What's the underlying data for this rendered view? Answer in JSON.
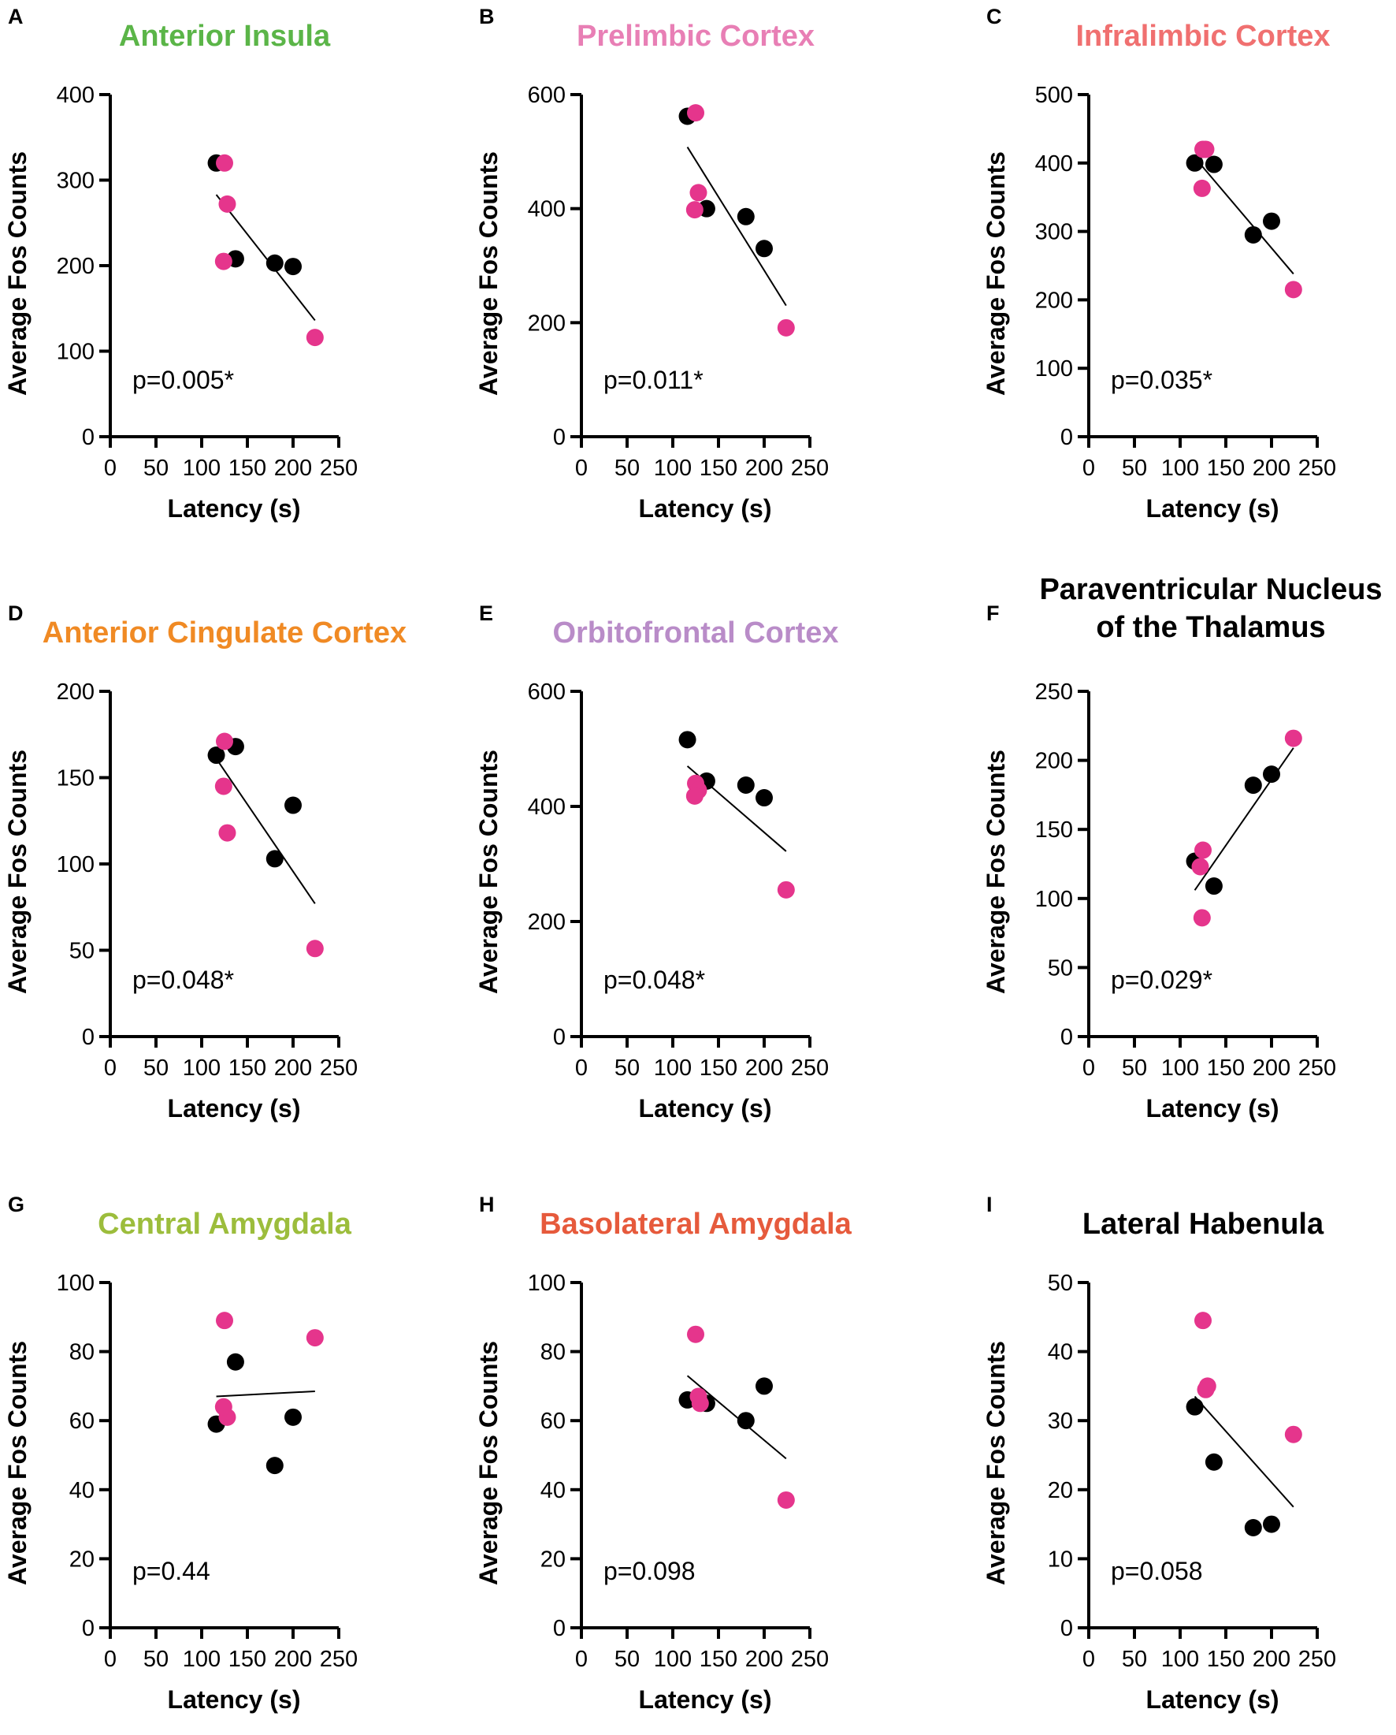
{
  "colors": {
    "control_point": "#000000",
    "treated_point": "#e5358c",
    "fit_line": "#000000"
  },
  "chart_data": [
    {
      "panel": "A",
      "type": "scatter",
      "title": "Anterior Insula",
      "title_color": "#5bb548",
      "xlabel": "Latency (s)",
      "ylabel": "Average Fos Counts",
      "xlim": [
        0,
        250
      ],
      "ylim": [
        0,
        400
      ],
      "xticks": [
        0,
        50,
        100,
        150,
        200,
        250
      ],
      "yticks": [
        0,
        100,
        200,
        300,
        400
      ],
      "x_tick_labels": [
        "0",
        "50",
        "100",
        "150",
        "200",
        "250"
      ],
      "y_tick_labels": [
        "0",
        "100",
        "200",
        "300",
        "400"
      ],
      "p_value": "p=0.005*",
      "series": [
        {
          "name": "black",
          "points": [
            [
              116,
              320
            ],
            [
              137,
              208
            ],
            [
              180,
              203
            ],
            [
              200,
              199
            ]
          ]
        },
        {
          "name": "magenta",
          "points": [
            [
              125,
              320
            ],
            [
              128,
              272
            ],
            [
              124,
              205
            ],
            [
              224,
              116
            ]
          ]
        }
      ],
      "fit": [
        [
          116,
          283
        ],
        [
          224,
          136
        ]
      ]
    },
    {
      "panel": "B",
      "type": "scatter",
      "title": "Prelimbic Cortex",
      "title_color": "#e87fb5",
      "xlabel": "Latency (s)",
      "ylabel": "Average Fos Counts",
      "xlim": [
        0,
        250
      ],
      "ylim": [
        0,
        600
      ],
      "xticks": [
        0,
        50,
        100,
        150,
        200,
        250
      ],
      "yticks": [
        0,
        200,
        400,
        600
      ],
      "x_tick_labels": [
        "0",
        "50",
        "100",
        "150",
        "200",
        "250"
      ],
      "y_tick_labels": [
        "0",
        "200",
        "400",
        "600"
      ],
      "p_value": "p=0.011*",
      "series": [
        {
          "name": "black",
          "points": [
            [
              116,
              562
            ],
            [
              137,
              400
            ],
            [
              180,
              386
            ],
            [
              200,
              330
            ]
          ]
        },
        {
          "name": "magenta",
          "points": [
            [
              125,
              568
            ],
            [
              128,
              428
            ],
            [
              124,
              398
            ],
            [
              224,
              191
            ]
          ]
        }
      ],
      "fit": [
        [
          116,
          508
        ],
        [
          224,
          230
        ]
      ]
    },
    {
      "panel": "C",
      "type": "scatter",
      "title": "Infralimbic Cortex",
      "title_color": "#f07070",
      "xlabel": "Latency (s)",
      "ylabel": "Average Fos Counts",
      "xlim": [
        0,
        250
      ],
      "ylim": [
        0,
        500
      ],
      "xticks": [
        0,
        50,
        100,
        150,
        200,
        250
      ],
      "yticks": [
        0,
        100,
        200,
        300,
        400,
        500
      ],
      "x_tick_labels": [
        "0",
        "50",
        "100",
        "150",
        "200",
        "250"
      ],
      "y_tick_labels": [
        "0",
        "100",
        "200",
        "300",
        "400",
        "500"
      ],
      "p_value": "p=0.035*",
      "series": [
        {
          "name": "black",
          "points": [
            [
              116,
              400
            ],
            [
              137,
              398
            ],
            [
              180,
              295
            ],
            [
              200,
              315
            ]
          ]
        },
        {
          "name": "magenta",
          "points": [
            [
              125,
              420
            ],
            [
              128,
              420
            ],
            [
              124,
              363
            ],
            [
              224,
              215
            ]
          ]
        }
      ],
      "fit": [
        [
          116,
          408
        ],
        [
          224,
          238
        ]
      ]
    },
    {
      "panel": "D",
      "type": "scatter",
      "title": "Anterior Cingulate Cortex",
      "title_color": "#f08a24",
      "xlabel": "Latency (s)",
      "ylabel": "Average Fos Counts",
      "xlim": [
        0,
        250
      ],
      "ylim": [
        0,
        200
      ],
      "xticks": [
        0,
        50,
        100,
        150,
        200,
        250
      ],
      "yticks": [
        0,
        50,
        100,
        150,
        200
      ],
      "x_tick_labels": [
        "0",
        "50",
        "100",
        "150",
        "200",
        "250"
      ],
      "y_tick_labels": [
        "0",
        "50",
        "100",
        "150",
        "200"
      ],
      "p_value": "p=0.048*",
      "series": [
        {
          "name": "black",
          "points": [
            [
              116,
              163
            ],
            [
              137,
              168
            ],
            [
              180,
              103
            ],
            [
              200,
              134
            ]
          ]
        },
        {
          "name": "magenta",
          "points": [
            [
              125,
              171
            ],
            [
              128,
              118
            ],
            [
              124,
              145
            ],
            [
              224,
              51
            ]
          ]
        }
      ],
      "fit": [
        [
          116,
          161
        ],
        [
          224,
          77
        ]
      ]
    },
    {
      "panel": "E",
      "type": "scatter",
      "title": "Orbitofrontal Cortex",
      "title_color": "#b98cc8",
      "xlabel": "Latency (s)",
      "ylabel": "Average Fos Counts",
      "xlim": [
        0,
        250
      ],
      "ylim": [
        0,
        600
      ],
      "xticks": [
        0,
        50,
        100,
        150,
        200,
        250
      ],
      "yticks": [
        0,
        200,
        400,
        600
      ],
      "x_tick_labels": [
        "0",
        "50",
        "100",
        "150",
        "200",
        "250"
      ],
      "y_tick_labels": [
        "0",
        "200",
        "400",
        "600"
      ],
      "p_value": "p=0.048*",
      "series": [
        {
          "name": "black",
          "points": [
            [
              116,
              516
            ],
            [
              137,
              444
            ],
            [
              180,
              437
            ],
            [
              200,
              415
            ]
          ]
        },
        {
          "name": "magenta",
          "points": [
            [
              125,
              440
            ],
            [
              128,
              428
            ],
            [
              124,
              418
            ],
            [
              224,
              255
            ]
          ]
        }
      ],
      "fit": [
        [
          116,
          470
        ],
        [
          224,
          322
        ]
      ]
    },
    {
      "panel": "F",
      "type": "scatter",
      "title": "Paraventricular Nucleus of the Thalamus",
      "title_lines": [
        "Paraventricular Nucleus",
        "of the Thalamus"
      ],
      "title_color": "#000000",
      "xlabel": "Latency (s)",
      "ylabel": "Average Fos Counts",
      "xlim": [
        0,
        250
      ],
      "ylim": [
        0,
        250
      ],
      "xticks": [
        0,
        50,
        100,
        150,
        200,
        250
      ],
      "yticks": [
        0,
        50,
        100,
        150,
        200,
        250
      ],
      "x_tick_labels": [
        "0",
        "50",
        "100",
        "150",
        "200",
        "250"
      ],
      "y_tick_labels": [
        "0",
        "50",
        "100",
        "150",
        "200",
        "250"
      ],
      "p_value": "p=0.029*",
      "series": [
        {
          "name": "black",
          "points": [
            [
              116,
              127
            ],
            [
              137,
              109
            ],
            [
              180,
              182
            ],
            [
              200,
              190
            ]
          ]
        },
        {
          "name": "magenta",
          "points": [
            [
              125,
              135
            ],
            [
              122,
              123
            ],
            [
              124,
              86
            ],
            [
              224,
              216
            ]
          ]
        }
      ],
      "fit": [
        [
          116,
          106
        ],
        [
          224,
          209
        ]
      ]
    },
    {
      "panel": "G",
      "type": "scatter",
      "title": "Central Amygdala",
      "title_color": "#9cbd3c",
      "xlabel": "Latency (s)",
      "ylabel": "Average Fos Counts",
      "xlim": [
        0,
        250
      ],
      "ylim": [
        0,
        100
      ],
      "xticks": [
        0,
        50,
        100,
        150,
        200,
        250
      ],
      "yticks": [
        0,
        20,
        40,
        60,
        80,
        100
      ],
      "x_tick_labels": [
        "0",
        "50",
        "100",
        "150",
        "200",
        "250"
      ],
      "y_tick_labels": [
        "0",
        "20",
        "40",
        "60",
        "80",
        "100"
      ],
      "p_value": "p=0.44",
      "series": [
        {
          "name": "black",
          "points": [
            [
              116,
              59
            ],
            [
              137,
              77
            ],
            [
              180,
              47
            ],
            [
              200,
              61
            ]
          ]
        },
        {
          "name": "magenta",
          "points": [
            [
              125,
              89
            ],
            [
              128,
              61
            ],
            [
              124,
              64
            ],
            [
              224,
              84
            ]
          ]
        }
      ],
      "fit": [
        [
          116,
          67
        ],
        [
          224,
          68.5
        ]
      ]
    },
    {
      "panel": "H",
      "type": "scatter",
      "title": "Basolateral Amygdala",
      "title_color": "#e65a3c",
      "xlabel": "Latency (s)",
      "ylabel": "Average Fos Counts",
      "xlim": [
        0,
        250
      ],
      "ylim": [
        0,
        100
      ],
      "xticks": [
        0,
        50,
        100,
        150,
        200,
        250
      ],
      "yticks": [
        0,
        20,
        40,
        60,
        80,
        100
      ],
      "x_tick_labels": [
        "0",
        "50",
        "100",
        "150",
        "200",
        "250"
      ],
      "y_tick_labels": [
        "0",
        "20",
        "40",
        "60",
        "80",
        "100"
      ],
      "p_value": "p=0.098",
      "series": [
        {
          "name": "black",
          "points": [
            [
              116,
              66
            ],
            [
              137,
              65
            ],
            [
              180,
              60
            ],
            [
              200,
              70
            ]
          ]
        },
        {
          "name": "magenta",
          "points": [
            [
              125,
              85
            ],
            [
              128,
              67
            ],
            [
              130,
              65
            ],
            [
              224,
              37
            ]
          ]
        }
      ],
      "fit": [
        [
          116,
          73
        ],
        [
          224,
          49
        ]
      ]
    },
    {
      "panel": "I",
      "type": "scatter",
      "title": "Lateral Habenula",
      "title_color": "#000000",
      "xlabel": "Latency (s)",
      "ylabel": "Average Fos Counts",
      "xlim": [
        0,
        250
      ],
      "ylim": [
        0,
        50
      ],
      "xticks": [
        0,
        50,
        100,
        150,
        200,
        250
      ],
      "yticks": [
        0,
        10,
        20,
        30,
        40,
        50
      ],
      "x_tick_labels": [
        "0",
        "50",
        "100",
        "150",
        "200",
        "250"
      ],
      "y_tick_labels": [
        "0",
        "10",
        "20",
        "30",
        "40",
        "50"
      ],
      "p_value": "p=0.058",
      "series": [
        {
          "name": "black",
          "points": [
            [
              116,
              32
            ],
            [
              137,
              24
            ],
            [
              180,
              14.5
            ],
            [
              200,
              15
            ]
          ]
        },
        {
          "name": "magenta",
          "points": [
            [
              125,
              44.5
            ],
            [
              128,
              34.5
            ],
            [
              130,
              35
            ],
            [
              224,
              28
            ]
          ]
        }
      ],
      "fit": [
        [
          116,
          33.5
        ],
        [
          224,
          17.5
        ]
      ]
    }
  ]
}
